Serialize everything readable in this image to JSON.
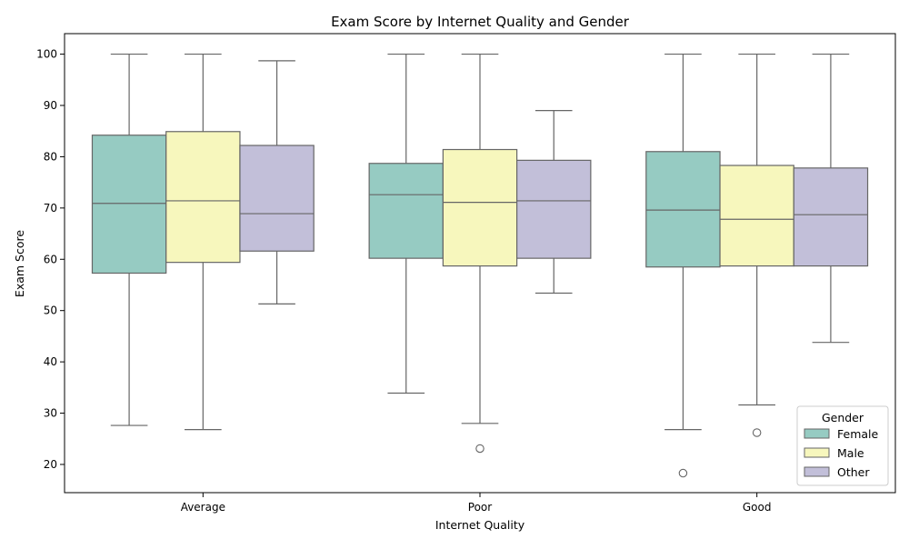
{
  "chart_data": {
    "type": "boxplot",
    "title": "Exam Score by Internet Quality and Gender",
    "xlabel": "Internet Quality",
    "ylabel": "Exam Score",
    "categories": [
      "Average",
      "Poor",
      "Good"
    ],
    "ylim": [
      14.5,
      104
    ],
    "yticks": [
      20,
      30,
      40,
      50,
      60,
      70,
      80,
      90,
      100
    ],
    "grid": false,
    "legend": {
      "title": "Gender",
      "placement": "lower-right"
    },
    "series": [
      {
        "name": "Female",
        "color": "#96cbc2",
        "boxes": [
          {
            "whisker_low": 27.6,
            "q1": 57.3,
            "median": 70.9,
            "q3": 84.2,
            "whisker_high": 100,
            "outliers": []
          },
          {
            "whisker_low": 33.9,
            "q1": 60.2,
            "median": 72.6,
            "q3": 78.7,
            "whisker_high": 100,
            "outliers": []
          },
          {
            "whisker_low": 26.8,
            "q1": 58.5,
            "median": 69.6,
            "q3": 81.0,
            "whisker_high": 100,
            "outliers": [
              18.3
            ]
          }
        ]
      },
      {
        "name": "Male",
        "color": "#f7f7bd",
        "boxes": [
          {
            "whisker_low": 26.8,
            "q1": 59.4,
            "median": 71.4,
            "q3": 84.9,
            "whisker_high": 100,
            "outliers": []
          },
          {
            "whisker_low": 28.0,
            "q1": 58.7,
            "median": 71.1,
            "q3": 81.4,
            "whisker_high": 100,
            "outliers": [
              23.1
            ]
          },
          {
            "whisker_low": 31.6,
            "q1": 58.7,
            "median": 67.8,
            "q3": 78.3,
            "whisker_high": 100,
            "outliers": [
              26.2
            ]
          }
        ]
      },
      {
        "name": "Other",
        "color": "#c2bfd9",
        "boxes": [
          {
            "whisker_low": 51.3,
            "q1": 61.6,
            "median": 68.9,
            "q3": 82.2,
            "whisker_high": 98.7,
            "outliers": []
          },
          {
            "whisker_low": 53.4,
            "q1": 60.2,
            "median": 71.4,
            "q3": 79.3,
            "whisker_high": 89.0,
            "outliers": []
          },
          {
            "whisker_low": 43.8,
            "q1": 58.7,
            "median": 68.7,
            "q3": 77.8,
            "whisker_high": 100,
            "outliers": []
          }
        ]
      }
    ]
  }
}
